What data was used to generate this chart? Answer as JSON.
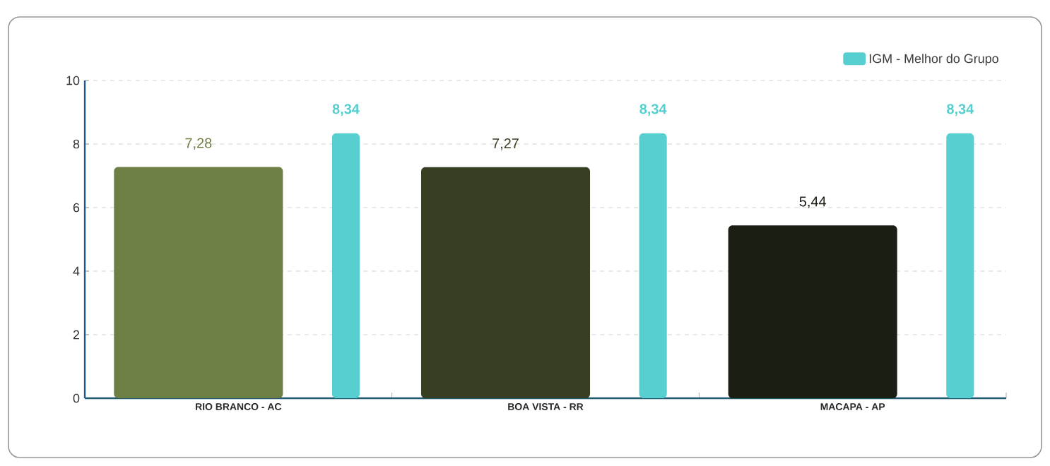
{
  "chart_data": {
    "type": "bar",
    "categories": [
      "RIO BRANCO - AC",
      "BOA VISTA - RR",
      "MACAPA - AP"
    ],
    "series": [
      {
        "colors": [
          "#6e7f45",
          "#363f22",
          "#1b1e12"
        ],
        "values": [
          7.28,
          7.27,
          5.44
        ],
        "value_labels": [
          "7,28",
          "7,27",
          "5,44"
        ]
      },
      {
        "name": "IGM - Melhor do Grupo",
        "color": "#57cfd0",
        "values": [
          8.34,
          8.34,
          8.34
        ],
        "value_labels": [
          "8,34",
          "8,34",
          "8,34"
        ]
      }
    ],
    "ylim": [
      0,
      10
    ],
    "yticks": [
      0,
      2,
      4,
      6,
      8,
      10
    ],
    "grid": "y",
    "legend": "top right"
  }
}
